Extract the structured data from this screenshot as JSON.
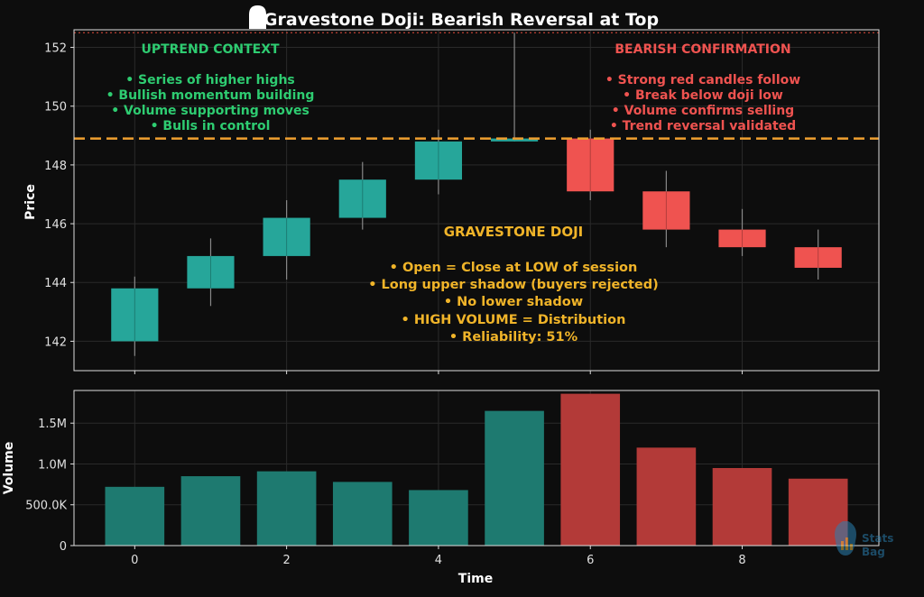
{
  "title": "Gravestone Doji: Bearish Reversal at Top",
  "colors": {
    "background": "#0d0d0d",
    "bull": "#26a69a",
    "bear": "#ef5350",
    "bull_volume": "#1e7a70",
    "bear_volume": "#b33a38",
    "uptrend_text": "#2ecc71",
    "bearish_text": "#ef5350",
    "doji_text": "#f0b429",
    "resistance_line": "#f0a030",
    "high_line": "#e74c3c",
    "axis_text": "#e0e0e0"
  },
  "annotations": {
    "uptrend": {
      "heading": "UPTREND CONTEXT",
      "lines": [
        "• Series of higher highs",
        "• Bullish momentum building",
        "• Volume supporting moves",
        "• Bulls in control"
      ]
    },
    "bearish": {
      "heading": "BEARISH CONFIRMATION",
      "lines": [
        "• Strong red candles follow",
        "• Break below doji low",
        "• Volume confirms selling",
        "• Trend reversal validated"
      ]
    },
    "doji": {
      "heading": "GRAVESTONE DOJI",
      "lines": [
        "• Open = Close at LOW of session",
        "• Long upper shadow (buyers rejected)",
        "• No lower shadow",
        "• HIGH VOLUME = Distribution",
        "• Reliability: 51%"
      ]
    }
  },
  "watermark": {
    "line1": "Stats",
    "line2": "Bag"
  },
  "chart_data": [
    {
      "type": "candlestick",
      "ylabel": "Price",
      "ylim": [
        141,
        152.6
      ],
      "yticks": [
        142,
        144,
        146,
        148,
        150,
        152
      ],
      "xlim": [
        -0.8,
        9.8
      ],
      "grid": true,
      "resistance_level": 148.9,
      "high_marker_level": 152.5,
      "candles": [
        {
          "x": 0,
          "open": 142.0,
          "high": 144.2,
          "low": 141.5,
          "close": 143.8
        },
        {
          "x": 1,
          "open": 143.8,
          "high": 145.5,
          "low": 143.2,
          "close": 144.9
        },
        {
          "x": 2,
          "open": 144.9,
          "high": 146.8,
          "low": 144.1,
          "close": 146.2
        },
        {
          "x": 3,
          "open": 146.2,
          "high": 148.1,
          "low": 145.8,
          "close": 147.5
        },
        {
          "x": 4,
          "open": 147.5,
          "high": 149.2,
          "low": 147.0,
          "close": 148.8
        },
        {
          "x": 5,
          "open": 148.8,
          "high": 152.5,
          "low": 148.8,
          "close": 148.9
        },
        {
          "x": 6,
          "open": 148.9,
          "high": 149.2,
          "low": 146.8,
          "close": 147.1
        },
        {
          "x": 7,
          "open": 147.1,
          "high": 147.8,
          "low": 145.2,
          "close": 145.8
        },
        {
          "x": 8,
          "open": 145.8,
          "high": 146.5,
          "low": 144.9,
          "close": 145.2
        },
        {
          "x": 9,
          "open": 145.2,
          "high": 145.8,
          "low": 144.1,
          "close": 144.5
        }
      ]
    },
    {
      "type": "bar",
      "xlabel": "Time",
      "ylabel": "Volume",
      "ylim": [
        0,
        1900000
      ],
      "yticks": [
        0,
        500000,
        1000000,
        1500000
      ],
      "ytick_labels": [
        "0",
        "500.0K",
        "1.0M",
        "1.5M"
      ],
      "xticks": [
        0,
        2,
        4,
        6,
        8
      ],
      "xlim": [
        -0.8,
        9.8
      ],
      "grid": true,
      "x": [
        0,
        1,
        2,
        3,
        4,
        5,
        6,
        7,
        8,
        9
      ],
      "values": [
        720000,
        850000,
        910000,
        780000,
        680000,
        1650000,
        1860000,
        1200000,
        950000,
        820000
      ],
      "direction": [
        "up",
        "up",
        "up",
        "up",
        "up",
        "up",
        "down",
        "down",
        "down",
        "down"
      ]
    }
  ]
}
